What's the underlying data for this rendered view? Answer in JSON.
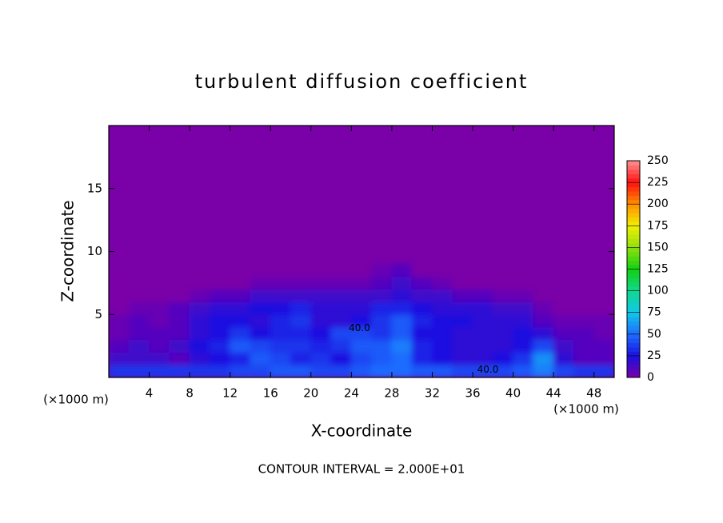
{
  "chart_data": {
    "type": "heatmap",
    "title": "turbulent diffusion coefficient",
    "xlabel": "X-coordinate",
    "ylabel": "Z-coordinate",
    "x_unit": "(×1000 m)",
    "y_unit": "(×1000 m)",
    "footer": "CONTOUR INTERVAL = 2.000E+01",
    "xlim": [
      0,
      50
    ],
    "ylim": [
      0,
      20
    ],
    "xticks": [
      4,
      8,
      12,
      16,
      20,
      24,
      28,
      32,
      36,
      40,
      44,
      48
    ],
    "yticks": [
      5,
      10,
      15
    ],
    "x_edges": [
      0,
      2,
      4,
      6,
      8,
      10,
      12,
      14,
      16,
      18,
      20,
      22,
      24,
      26,
      28,
      30,
      32,
      34,
      36,
      38,
      40,
      42,
      44,
      46,
      48,
      50
    ],
    "y_edges": [
      0,
      1,
      2,
      3,
      4,
      5,
      6,
      7,
      8,
      9
    ],
    "z": [
      [
        35,
        35,
        35,
        35,
        35,
        35,
        40,
        40,
        45,
        45,
        40,
        40,
        45,
        50,
        50,
        45,
        45,
        40,
        40,
        40,
        45,
        55,
        40,
        35,
        35
      ],
      [
        15,
        15,
        15,
        10,
        20,
        25,
        30,
        45,
        40,
        30,
        35,
        25,
        40,
        45,
        50,
        30,
        25,
        20,
        20,
        25,
        35,
        60,
        20,
        10,
        10
      ],
      [
        10,
        15,
        10,
        15,
        25,
        30,
        45,
        40,
        35,
        35,
        30,
        35,
        45,
        45,
        55,
        30,
        25,
        20,
        20,
        20,
        25,
        40,
        15,
        10,
        10
      ],
      [
        5,
        10,
        10,
        10,
        20,
        25,
        35,
        25,
        30,
        30,
        25,
        40,
        40,
        35,
        45,
        25,
        25,
        20,
        20,
        20,
        25,
        20,
        10,
        10,
        5
      ],
      [
        5,
        10,
        5,
        10,
        20,
        25,
        25,
        20,
        30,
        35,
        20,
        20,
        25,
        35,
        45,
        30,
        25,
        25,
        20,
        20,
        20,
        10,
        5,
        5,
        5
      ],
      [
        0,
        5,
        5,
        10,
        15,
        20,
        20,
        25,
        25,
        30,
        20,
        20,
        20,
        30,
        30,
        25,
        20,
        20,
        20,
        15,
        15,
        5,
        0,
        0,
        0
      ],
      [
        0,
        0,
        0,
        0,
        5,
        10,
        10,
        15,
        15,
        15,
        15,
        15,
        15,
        15,
        20,
        15,
        15,
        10,
        10,
        5,
        5,
        0,
        0,
        0,
        0
      ],
      [
        0,
        0,
        0,
        0,
        0,
        0,
        0,
        5,
        5,
        5,
        5,
        5,
        5,
        10,
        15,
        10,
        5,
        0,
        0,
        0,
        0,
        0,
        0,
        0,
        0
      ],
      [
        0,
        0,
        0,
        0,
        0,
        0,
        0,
        0,
        0,
        0,
        0,
        0,
        0,
        5,
        10,
        0,
        0,
        0,
        0,
        0,
        0,
        0,
        0,
        0,
        0
      ]
    ],
    "contour_labels": [
      {
        "value": 40,
        "label": "40.0",
        "x": 37.5,
        "y": 0.6
      },
      {
        "value": 40,
        "label": "40.0",
        "x": 24.8,
        "y": 3.9
      }
    ],
    "colorbar": {
      "lim": [
        0,
        250
      ],
      "ticks": [
        0,
        25,
        50,
        75,
        100,
        125,
        150,
        175,
        200,
        225,
        250
      ],
      "colors": [
        "#7a00a8",
        "#1a10e0",
        "#1e6cff",
        "#10c8e8",
        "#10d890",
        "#10d010",
        "#90e010",
        "#f0f000",
        "#ff9000",
        "#ff1010",
        "#ff9090"
      ]
    }
  }
}
